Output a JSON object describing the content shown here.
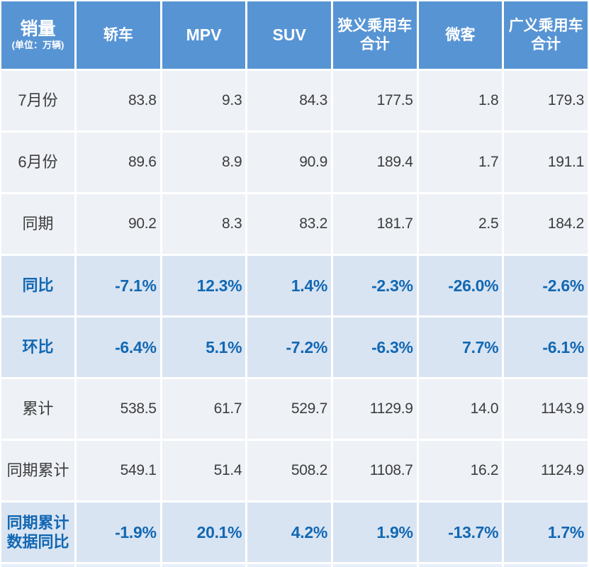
{
  "table": {
    "corner": {
      "title": "销量",
      "unit_note": "(单位：万辆)"
    },
    "columns": [
      {
        "label": "轿车"
      },
      {
        "label": "MPV"
      },
      {
        "label": "SUV"
      },
      {
        "label": "狭义乘用车\n合计"
      },
      {
        "label": "微客"
      },
      {
        "label": "广义乘用车\n合计"
      }
    ],
    "rows": [
      {
        "label": "7月份",
        "type": "normal",
        "values": [
          "83.8",
          "9.3",
          "84.3",
          "177.5",
          "1.8",
          "179.3"
        ]
      },
      {
        "label": "6月份",
        "type": "normal",
        "values": [
          "89.6",
          "8.9",
          "90.9",
          "189.4",
          "1.7",
          "191.1"
        ]
      },
      {
        "label": "同期",
        "type": "normal",
        "values": [
          "90.2",
          "8.3",
          "83.2",
          "181.7",
          "2.5",
          "184.2"
        ]
      },
      {
        "label": "同比",
        "type": "highlight",
        "values": [
          "-7.1%",
          "12.3%",
          "1.4%",
          "-2.3%",
          "-26.0%",
          "-2.6%"
        ]
      },
      {
        "label": "环比",
        "type": "highlight",
        "values": [
          "-6.4%",
          "5.1%",
          "-7.2%",
          "-6.3%",
          "7.7%",
          "-6.1%"
        ]
      },
      {
        "label": "累计",
        "type": "normal",
        "values": [
          "538.5",
          "61.7",
          "529.7",
          "1129.9",
          "14.0",
          "1143.9"
        ]
      },
      {
        "label": "同期累计",
        "type": "normal",
        "values": [
          "549.1",
          "51.4",
          "508.2",
          "1108.7",
          "16.2",
          "1124.9"
        ]
      },
      {
        "label": "同期累计\n数据同比",
        "type": "highlight",
        "values": [
          "-1.9%",
          "20.1%",
          "4.2%",
          "1.9%",
          "-13.7%",
          "1.7%"
        ]
      }
    ],
    "colors": {
      "header_bg": "#5794d4",
      "header_text": "#ffffff",
      "row_bg": "#eef1f6",
      "row_text": "#3d3d3d",
      "highlight_bg": "#d9e4f2",
      "highlight_text": "#1268b3",
      "gridline": "#ffffff"
    }
  },
  "chart_data": {
    "type": "table",
    "title": "销量 (单位：万辆)",
    "columns": [
      "销量",
      "轿车",
      "MPV",
      "SUV",
      "狭义乘用车合计",
      "微客",
      "广义乘用车合计"
    ],
    "rows": [
      [
        "7月份",
        83.8,
        9.3,
        84.3,
        177.5,
        1.8,
        179.3
      ],
      [
        "6月份",
        89.6,
        8.9,
        90.9,
        189.4,
        1.7,
        191.1
      ],
      [
        "同期",
        90.2,
        8.3,
        83.2,
        181.7,
        2.5,
        184.2
      ],
      [
        "同比",
        "-7.1%",
        "12.3%",
        "1.4%",
        "-2.3%",
        "-26.0%",
        "-2.6%"
      ],
      [
        "环比",
        "-6.4%",
        "5.1%",
        "-7.2%",
        "-6.3%",
        "7.7%",
        "-6.1%"
      ],
      [
        "累计",
        538.5,
        61.7,
        529.7,
        1129.9,
        14.0,
        1143.9
      ],
      [
        "同期累计",
        549.1,
        51.4,
        508.2,
        1108.7,
        16.2,
        1124.9
      ],
      [
        "同期累计数据同比",
        "-1.9%",
        "20.1%",
        "4.2%",
        "1.9%",
        "-13.7%",
        "1.7%"
      ]
    ],
    "layout": {
      "highlight_rows": [
        3,
        4,
        7
      ],
      "unit": "万辆",
      "grid": true
    }
  }
}
